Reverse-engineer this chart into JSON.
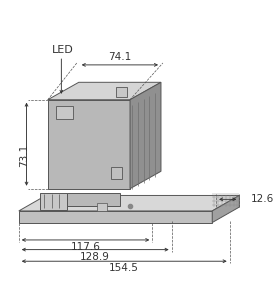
{
  "bg_color": "#f5f5f5",
  "line_color": "#555555",
  "fill_main": "#b0b0b0",
  "fill_dark": "#888888",
  "fill_light": "#d0d0d0",
  "fill_base": "#cccccc",
  "dim_color": "#333333",
  "dim_fontsize": 7.5,
  "label_fontsize": 7.5,
  "dims": {
    "width_top": "74.1",
    "height_left": "73.1",
    "width_117": "117.6",
    "width_129": "128.9",
    "width_154": "154.5",
    "depth_right": "12.6"
  },
  "led_label": "LED"
}
